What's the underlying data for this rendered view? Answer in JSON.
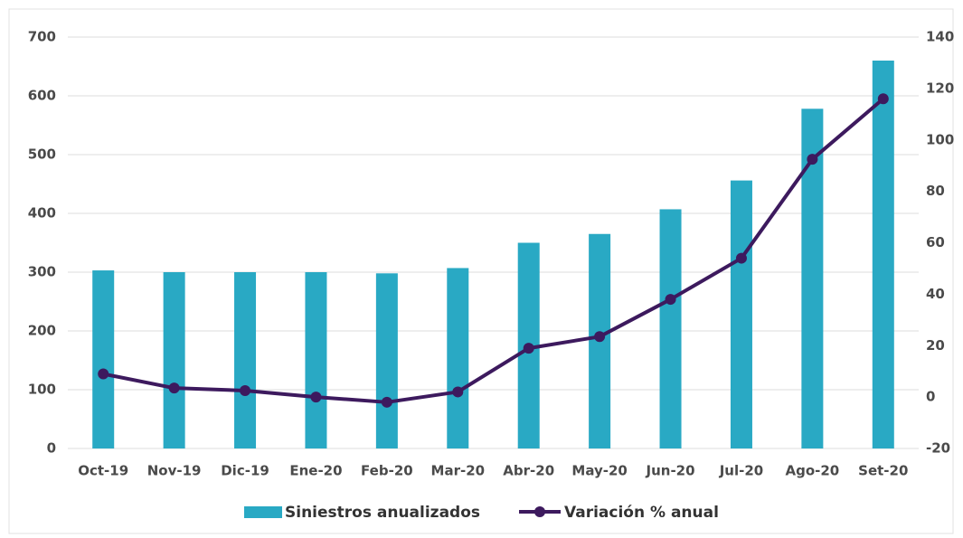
{
  "chart_data": {
    "type": "bar+line",
    "categories": [
      "Oct-19",
      "Nov-19",
      "Dic-19",
      "Ene-20",
      "Feb-20",
      "Mar-20",
      "Abr-20",
      "May-20",
      "Jun-20",
      "Jul-20",
      "Ago-20",
      "Set-20"
    ],
    "series": [
      {
        "name": "Siniestros anualizados",
        "type": "bar",
        "color": "#29a9c4",
        "values": [
          303,
          300,
          300,
          300,
          298,
          307,
          350,
          365,
          407,
          456,
          578,
          660
        ]
      },
      {
        "name": "Variación % anual",
        "type": "line",
        "axis": "y2",
        "color": "#3d1a5e",
        "values": [
          9,
          3.5,
          2.5,
          0,
          -2,
          2,
          19,
          23.5,
          38,
          54,
          92.5,
          116
        ]
      }
    ],
    "ylim": [
      0,
      700
    ],
    "yticks": [
      0,
      100,
      200,
      300,
      400,
      500,
      600,
      700
    ],
    "y2lim": [
      -20,
      140
    ],
    "y2ticks": [
      -20,
      0,
      20,
      40,
      60,
      80,
      100,
      120,
      140
    ],
    "grid": true,
    "legend": "bottom"
  }
}
